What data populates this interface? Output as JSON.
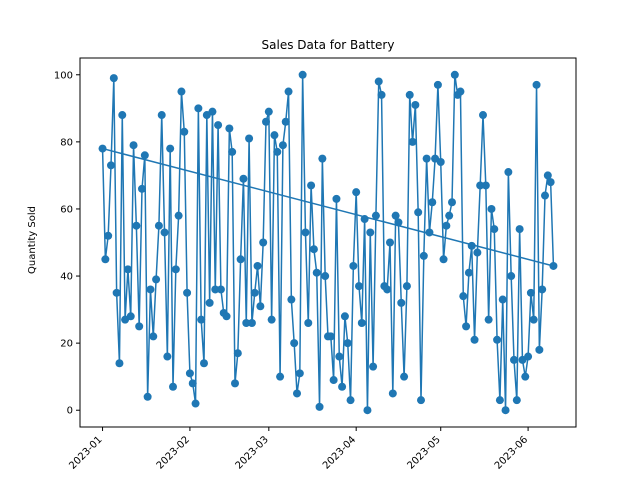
{
  "chart_data": {
    "type": "line",
    "title": "Sales Data for Battery",
    "xlabel": "",
    "ylabel": "Quantity Sold",
    "x_start": "2023-01-01",
    "x_end": "2023-06-10",
    "x_ticks": [
      "2023-01",
      "2023-02",
      "2023-03",
      "2023-04",
      "2023-05",
      "2023-06"
    ],
    "y_ticks": [
      0,
      20,
      40,
      60,
      80,
      100
    ],
    "ylim": [
      -5,
      105
    ],
    "grid": false,
    "colors": {
      "series": "#1f77b4"
    },
    "series": [
      {
        "values": [
          78,
          45,
          52,
          73,
          99,
          35,
          14,
          88,
          27,
          42,
          28,
          79,
          55,
          25,
          66,
          76,
          4,
          36,
          22,
          39,
          55,
          88,
          53,
          16,
          78,
          7,
          42,
          58,
          95,
          83,
          35,
          11,
          8,
          2,
          90,
          27,
          14,
          88,
          32,
          89,
          36,
          85,
          36,
          29,
          28,
          84,
          77,
          8,
          17,
          45,
          69,
          26,
          81,
          26,
          35,
          43,
          31,
          50,
          86,
          89,
          27,
          82,
          77,
          10,
          79,
          86,
          95,
          33,
          20,
          5,
          11,
          100,
          53,
          26,
          67,
          48,
          41,
          1,
          75,
          40,
          22,
          22,
          9,
          63,
          16,
          7,
          28,
          20,
          3,
          43,
          65,
          37,
          26,
          57,
          0,
          53,
          13,
          58,
          98,
          94,
          37,
          36,
          50,
          5,
          58,
          56,
          32,
          10,
          37,
          94,
          80,
          91,
          59,
          3,
          46,
          75,
          53,
          62,
          75,
          97,
          74,
          45,
          55,
          58,
          62,
          100,
          94,
          95,
          34,
          25,
          41,
          49,
          21,
          47,
          67,
          88,
          67,
          27,
          60,
          54,
          21,
          3,
          33,
          0,
          71,
          40,
          15,
          3,
          54,
          15,
          10,
          16,
          35,
          27,
          97,
          18,
          36,
          64,
          70,
          68,
          43
        ]
      }
    ],
    "trend": {
      "start_value": 78,
      "end_value": 43
    }
  }
}
